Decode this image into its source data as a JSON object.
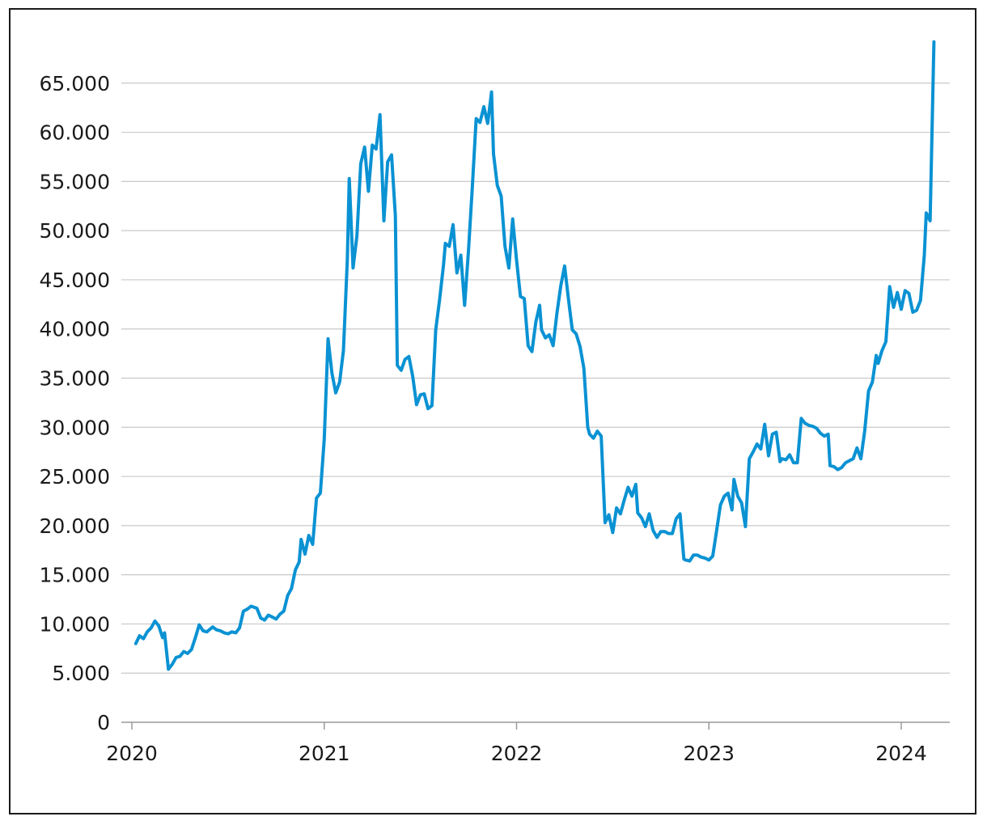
{
  "chart_data": {
    "type": "line",
    "title": "",
    "xlabel": "",
    "ylabel": "",
    "xlim": [
      2020.0,
      2024.25
    ],
    "ylim": [
      0,
      70000
    ],
    "yticks": [
      {
        "value": 0,
        "label": "0"
      },
      {
        "value": 5000,
        "label": "5.000"
      },
      {
        "value": 10000,
        "label": "10.000"
      },
      {
        "value": 15000,
        "label": "15.000"
      },
      {
        "value": 20000,
        "label": "20.000"
      },
      {
        "value": 25000,
        "label": "25.000"
      },
      {
        "value": 30000,
        "label": "30.000"
      },
      {
        "value": 35000,
        "label": "35.000"
      },
      {
        "value": 40000,
        "label": "40.000"
      },
      {
        "value": 45000,
        "label": "45.000"
      },
      {
        "value": 50000,
        "label": "50.000"
      },
      {
        "value": 55000,
        "label": "55.000"
      },
      {
        "value": 60000,
        "label": "60.000"
      },
      {
        "value": 65000,
        "label": "65.000"
      }
    ],
    "xticks": [
      {
        "value": 2020,
        "label": "2020"
      },
      {
        "value": 2021,
        "label": "2021"
      },
      {
        "value": 2022,
        "label": "2022"
      },
      {
        "value": 2023,
        "label": "2023"
      },
      {
        "value": 2024,
        "label": "2024"
      }
    ],
    "grid": true,
    "colors": {
      "series": "#0a92d3",
      "grid": "#c8c8c8",
      "axis": "#9a9a9a",
      "text": "#1a1a1a"
    },
    "series": [
      {
        "x": [
          2020.02,
          2020.04,
          2020.06,
          2020.08,
          2020.1,
          2020.12,
          2020.14,
          2020.16,
          2020.17,
          2020.19,
          2020.21,
          2020.23,
          2020.25,
          2020.27,
          2020.29,
          2020.31,
          2020.33,
          2020.35,
          2020.37,
          2020.39,
          2020.42,
          2020.44,
          2020.46,
          2020.48,
          2020.5,
          2020.52,
          2020.54,
          2020.56,
          2020.58,
          2020.6,
          2020.62,
          2020.65,
          2020.67,
          2020.69,
          2020.71,
          2020.73,
          2020.75,
          2020.77,
          2020.79,
          2020.81,
          2020.83,
          2020.85,
          2020.87,
          2020.88,
          2020.9,
          2020.92,
          2020.94,
          2020.96,
          2020.98,
          2021.0,
          2021.02,
          2021.04,
          2021.06,
          2021.08,
          2021.1,
          2021.12,
          2021.13,
          2021.15,
          2021.17,
          2021.19,
          2021.21,
          2021.23,
          2021.25,
          2021.27,
          2021.29,
          2021.31,
          2021.33,
          2021.35,
          2021.37,
          2021.38,
          2021.4,
          2021.42,
          2021.44,
          2021.46,
          2021.48,
          2021.5,
          2021.52,
          2021.54,
          2021.56,
          2021.58,
          2021.6,
          2021.62,
          2021.63,
          2021.65,
          2021.67,
          2021.69,
          2021.71,
          2021.73,
          2021.75,
          2021.77,
          2021.79,
          2021.81,
          2021.83,
          2021.85,
          2021.87,
          2021.88,
          2021.9,
          2021.92,
          2021.94,
          2021.96,
          2021.98,
          2022.0,
          2022.02,
          2022.04,
          2022.06,
          2022.08,
          2022.1,
          2022.12,
          2022.13,
          2022.15,
          2022.17,
          2022.19,
          2022.21,
          2022.23,
          2022.25,
          2022.27,
          2022.29,
          2022.31,
          2022.33,
          2022.35,
          2022.37,
          2022.38,
          2022.4,
          2022.42,
          2022.44,
          2022.46,
          2022.48,
          2022.5,
          2022.52,
          2022.54,
          2022.56,
          2022.58,
          2022.6,
          2022.62,
          2022.63,
          2022.65,
          2022.67,
          2022.69,
          2022.71,
          2022.73,
          2022.75,
          2022.77,
          2022.79,
          2022.81,
          2022.83,
          2022.85,
          2022.87,
          2022.88,
          2022.9,
          2022.92,
          2022.94,
          2022.96,
          2022.98,
          2023.0,
          2023.02,
          2023.04,
          2023.06,
          2023.08,
          2023.1,
          2023.12,
          2023.13,
          2023.15,
          2023.17,
          2023.19,
          2023.21,
          2023.23,
          2023.25,
          2023.27,
          2023.29,
          2023.31,
          2023.33,
          2023.35,
          2023.37,
          2023.38,
          2023.4,
          2023.42,
          2023.44,
          2023.46,
          2023.48,
          2023.5,
          2023.52,
          2023.54,
          2023.56,
          2023.58,
          2023.6,
          2023.62,
          2023.63,
          2023.65,
          2023.67,
          2023.69,
          2023.71,
          2023.73,
          2023.75,
          2023.77,
          2023.79,
          2023.81,
          2023.83,
          2023.85,
          2023.87,
          2023.88,
          2023.9,
          2023.92,
          2023.94,
          2023.96,
          2023.98,
          2024.0,
          2024.02,
          2024.04,
          2024.06,
          2024.08,
          2024.1,
          2024.12,
          2024.13,
          2024.15,
          2024.17
        ],
        "values": [
          8000,
          8800,
          8500,
          9200,
          9600,
          10300,
          9800,
          8600,
          9100,
          5400,
          5900,
          6600,
          6700,
          7200,
          7000,
          7400,
          8600,
          9900,
          9300,
          9200,
          9700,
          9400,
          9300,
          9100,
          9000,
          9200,
          9100,
          9600,
          11300,
          11500,
          11800,
          11600,
          10600,
          10400,
          10900,
          10700,
          10500,
          11000,
          11300,
          12900,
          13600,
          15500,
          16300,
          18600,
          17100,
          19000,
          18100,
          22800,
          23300,
          28800,
          39000,
          35500,
          33500,
          34600,
          37800,
          47000,
          55300,
          46200,
          49500,
          56800,
          58500,
          54000,
          58700,
          58300,
          61800,
          51000,
          57000,
          57700,
          51500,
          36300,
          35800,
          36900,
          37200,
          35200,
          32300,
          33300,
          33400,
          31900,
          32200,
          39900,
          43000,
          46500,
          48700,
          48400,
          50600,
          45700,
          47500,
          42400,
          48000,
          54400,
          61400,
          61000,
          62600,
          60900,
          64100,
          57800,
          54600,
          53500,
          48400,
          46200,
          51200,
          47000,
          43300,
          43100,
          38300,
          37700,
          40700,
          42400,
          39900,
          39100,
          39400,
          38300,
          41600,
          44400,
          46400,
          43000,
          39900,
          39500,
          38200,
          36000,
          30000,
          29300,
          28900,
          29600,
          29100,
          20300,
          21100,
          19300,
          21800,
          21200,
          22600,
          23900,
          23000,
          24200,
          21300,
          20800,
          19900,
          21200,
          19500,
          18800,
          19400,
          19400,
          19200,
          19200,
          20700,
          21200,
          16600,
          16500,
          16400,
          17000,
          17000,
          16800,
          16700,
          16500,
          16900,
          19500,
          22100,
          23000,
          23300,
          21600,
          24700,
          23000,
          22300,
          19900,
          26800,
          27500,
          28300,
          27800,
          30300,
          27100,
          29300,
          29500,
          26500,
          26800,
          26700,
          27200,
          26400,
          26400,
          30900,
          30400,
          30200,
          30100,
          29900,
          29400,
          29100,
          29300,
          26100,
          26000,
          25700,
          25900,
          26400,
          26600,
          26800,
          27900,
          26800,
          29600,
          33700,
          34600,
          37300,
          36500,
          37800,
          38700,
          44300,
          42200,
          43700,
          42000,
          43900,
          43600,
          41700,
          41900,
          42900,
          47500,
          51800,
          51000,
          69200
        ]
      }
    ]
  }
}
